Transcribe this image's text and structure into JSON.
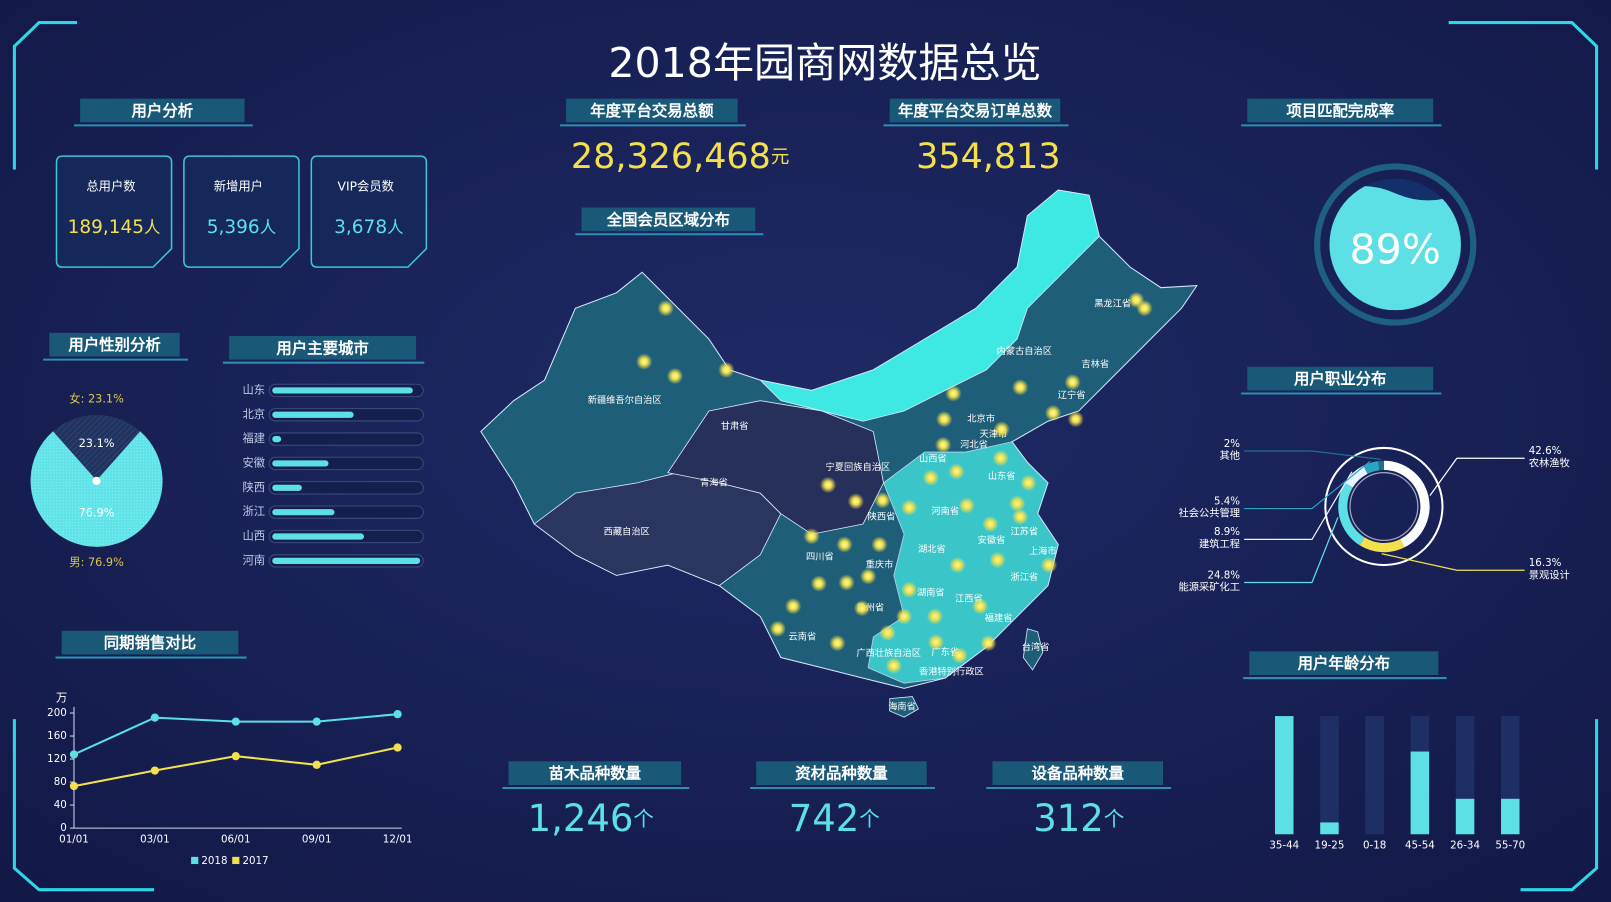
{
  "title": "2018年园商网数据总览",
  "user_analysis": {
    "title": "用户分析",
    "cards": [
      {
        "label": "总用户数",
        "value": "189,145",
        "unit": "人"
      },
      {
        "label": "新增用户",
        "value": "5,396",
        "unit": "人"
      },
      {
        "label": "VIP会员数",
        "value": "3,678",
        "unit": "人"
      }
    ]
  },
  "kpis": [
    {
      "title": "年度平台交易总额",
      "value": "28,326,468",
      "unit": "元"
    },
    {
      "title": "年度平台交易订单总数",
      "value": "354,813"
    }
  ],
  "map": {
    "title": "全国会员区域分布",
    "regions": [
      "新疆维吾尔自治区",
      "西藏自治区",
      "青海省",
      "甘肃省",
      "内蒙古自治区",
      "黑龙江省",
      "吉林省",
      "辽宁省",
      "北京市",
      "天津市",
      "河北省",
      "山西省",
      "山东省",
      "宁夏回族自治区",
      "陕西省",
      "河南省",
      "江苏省",
      "安徽省",
      "上海市",
      "湖北省",
      "四川省",
      "重庆市",
      "浙江省",
      "湖南省",
      "江西省",
      "贵州省",
      "福建省",
      "云南省",
      "广西壮族自治区",
      "广东省",
      "台湾省",
      "香港特别行政区",
      "海南省"
    ]
  },
  "counts": [
    {
      "title": "苗木品种数量",
      "value": "1,246",
      "unit": "个"
    },
    {
      "title": "资材品种数量",
      "value": "742",
      "unit": "个"
    },
    {
      "title": "设备品种数量",
      "value": "312",
      "unit": "个"
    }
  ],
  "chart_data": [
    {
      "type": "gauge",
      "title": "项目匹配完成率",
      "values": [
        89
      ],
      "value_labels": [
        "89%"
      ],
      "ylim": [
        0,
        100
      ],
      "color": "#5ce0e6"
    },
    {
      "type": "pie",
      "title": "用户性别分析",
      "labels": [
        "女: 23.1%",
        "男: 76.9%"
      ],
      "values": [
        23.1,
        76.9
      ],
      "value_labels": [
        "23.1%",
        "76.9%"
      ],
      "colors": [
        "#22335f",
        "#5fe3e8"
      ]
    },
    {
      "type": "hbar",
      "title": "用户主要城市",
      "categories": [
        "山东",
        "北京",
        "福建",
        "安徽",
        "陕西",
        "浙江",
        "山西",
        "河南"
      ],
      "values": [
        95,
        55,
        6,
        38,
        20,
        42,
        62,
        100
      ],
      "xlim": [
        0,
        100
      ],
      "color": "#5ce0e6"
    },
    {
      "type": "line",
      "title": "同期销售对比",
      "y_label": "万",
      "categories": [
        "01/01",
        "03/01",
        "06/01",
        "09/01",
        "12/01"
      ],
      "series": [
        {
          "name": "2018",
          "color": "#5ce0e6",
          "values": [
            128,
            192,
            185,
            185,
            198
          ]
        },
        {
          "name": "2017",
          "color": "#f2e14c",
          "values": [
            73,
            100,
            125,
            110,
            140
          ]
        }
      ],
      "ylim": [
        0,
        200
      ],
      "yticks": [
        0,
        40,
        80,
        120,
        160,
        200
      ],
      "legend": "bottom"
    },
    {
      "type": "donut",
      "title": "用户职业分布",
      "categories": [
        "农林渔牧",
        "景观设计",
        "能源采矿化工",
        "建筑工程",
        "社会公共管理",
        "其他"
      ],
      "values": [
        42.6,
        16.3,
        24.8,
        8.9,
        5.4,
        2
      ],
      "value_labels": [
        "42.6%",
        "16.3%",
        "24.8%",
        "8.9%",
        "5.4%",
        "2%"
      ],
      "colors": [
        "#ffffff",
        "#f2e14c",
        "#5ce0e6",
        "#e8f4ff",
        "#2aa5c0",
        "#1e6f90"
      ]
    },
    {
      "type": "vbar",
      "title": "用户年龄分布",
      "categories": [
        "35-44",
        "19-25",
        "0-18",
        "45-54",
        "26-34",
        "55-70"
      ],
      "values": [
        100,
        10,
        0,
        70,
        30,
        30
      ],
      "ylim": [
        0,
        100
      ],
      "color": "#5ce0e6"
    }
  ]
}
